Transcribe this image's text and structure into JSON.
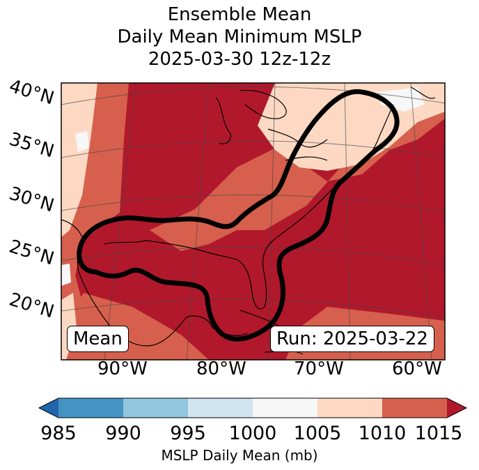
{
  "title": {
    "line1": "Ensemble Mean",
    "line2": "Daily Mean Minimum MSLP",
    "line3": "2025-03-30 12z-12z"
  },
  "map": {
    "lat_labels": [
      "40°N",
      "35°N",
      "30°N",
      "25°N",
      "20°N"
    ],
    "lon_labels": [
      "90°W",
      "80°W",
      "70°W",
      "60°W"
    ],
    "mean_tag": "Mean",
    "run_tag": "Run: 2025-03-22",
    "colors": {
      "v1000_1005": "#f7f7f7",
      "v1005_1010": "#fdd9c4",
      "v1010_1015": "#d6604d",
      "above_1015": "#b2182b",
      "contour": "#000000"
    }
  },
  "colorbar": {
    "ticks": [
      "985",
      "990",
      "995",
      "1000",
      "1005",
      "1010",
      "1015"
    ],
    "colors": [
      "#2166ac",
      "#4393c3",
      "#92c5de",
      "#d1e5f0",
      "#f7f7f7",
      "#fdd9c4",
      "#d6604d",
      "#b2182b"
    ],
    "label": "MSLP Daily Mean (mb)"
  }
}
